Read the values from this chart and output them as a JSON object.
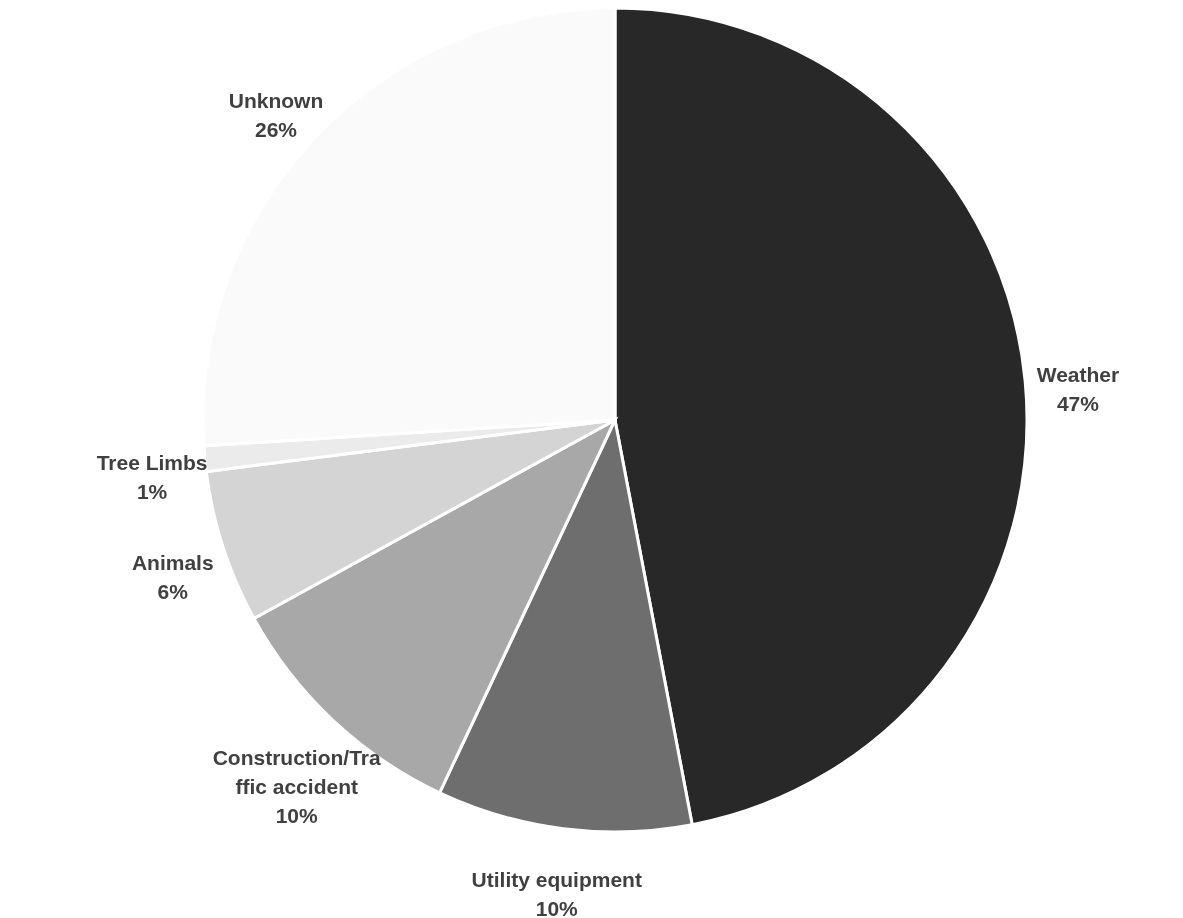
{
  "chart_data": {
    "type": "pie",
    "categories": [
      "Weather",
      "Utility equipment",
      "Construction/Traffic accident",
      "Animals",
      "Tree Limbs",
      "Unknown"
    ],
    "values": [
      47,
      10,
      10,
      6,
      1,
      26
    ],
    "value_labels": [
      "47%",
      "10%",
      "10%",
      "6%",
      "1%",
      "26%"
    ],
    "colors": [
      "#282828",
      "#6e6e6e",
      "#a8a8a8",
      "#d4d4d4",
      "#ebebeb",
      "#fafafa"
    ]
  }
}
